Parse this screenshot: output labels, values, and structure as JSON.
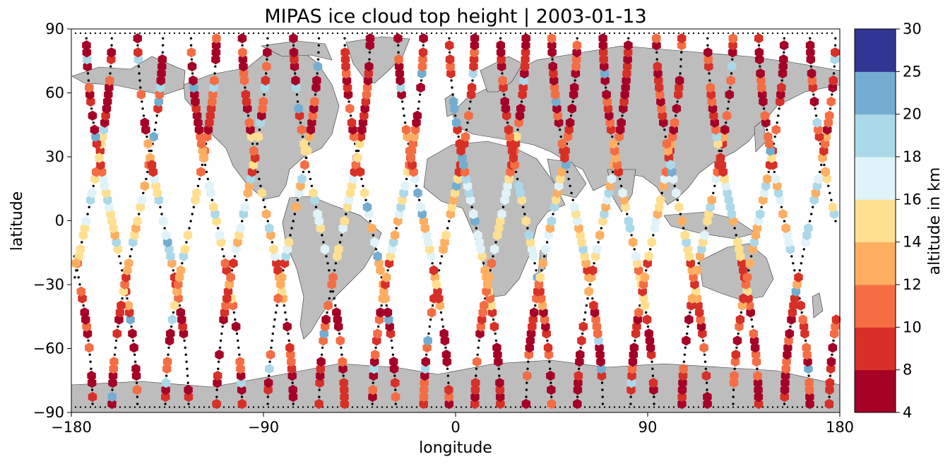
{
  "chart_data": {
    "type": "scatter",
    "title": "MIPAS ice cloud top height | 2003-01-13",
    "xlabel": "longitude",
    "ylabel": "latitude",
    "xlim": [
      -180,
      180
    ],
    "ylim": [
      -90,
      90
    ],
    "x_ticks": [
      -180,
      -90,
      0,
      90,
      180
    ],
    "y_ticks": [
      -90,
      -60,
      -30,
      0,
      30,
      60,
      90
    ],
    "x_tick_labels": [
      "−180",
      "−90",
      "0",
      "90",
      "180"
    ],
    "y_tick_labels": [
      "−90",
      "−60",
      "−30",
      "0",
      "30",
      "60",
      "90"
    ],
    "colorbar": {
      "label": "altitude in km",
      "bounds": [
        4,
        8,
        10,
        12,
        14,
        16,
        18,
        20,
        25,
        30
      ],
      "tick_labels": [
        "4",
        "8",
        "10",
        "12",
        "14",
        "16",
        "18",
        "20",
        "25",
        "30"
      ],
      "colors": [
        "#a50026",
        "#d73027",
        "#f46d43",
        "#fdae61",
        "#fee090",
        "#ffffbf",
        "#e0f3f8",
        "#abd9e9",
        "#74add1",
        "#4575b4",
        "#313695"
      ]
    },
    "land_color": "#bdbdbd",
    "track_marker_color": "#000000",
    "orbit_equator_crossings": [
      -173,
      -149,
      -124,
      -100,
      -76,
      -52,
      -27,
      -3,
      21,
      45,
      69,
      94,
      118,
      142,
      166
    ]
  }
}
